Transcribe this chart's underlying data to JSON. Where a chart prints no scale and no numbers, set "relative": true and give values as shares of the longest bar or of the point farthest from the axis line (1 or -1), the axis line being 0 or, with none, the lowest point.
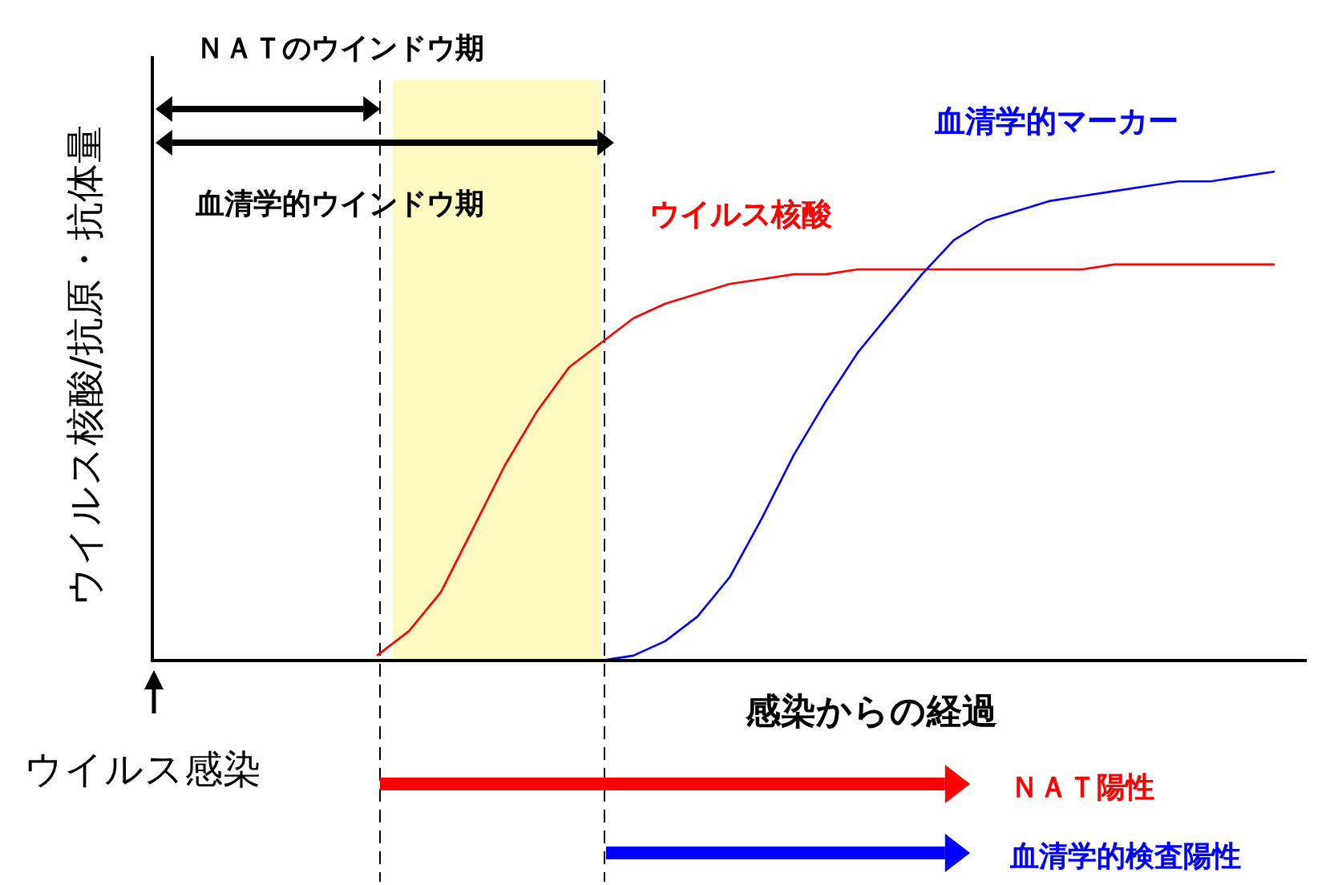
{
  "chart_data": {
    "type": "line",
    "relative": true,
    "xlabel": "感染からの経過",
    "ylabel": "ウイルス核酸/抗原・抗体量",
    "categories": [
      null,
      null,
      null,
      null,
      null,
      null,
      null,
      null,
      null,
      null,
      null,
      null,
      null,
      null,
      null,
      null,
      null,
      null,
      null,
      null,
      null,
      null,
      null,
      null,
      null,
      null,
      null,
      null,
      null,
      null,
      null,
      null,
      null,
      null,
      null,
      null
    ],
    "line_style": "solid",
    "series": [
      {
        "name": "ウイルス核酸",
        "color": "#ff0000",
        "values": [
          null,
          null,
          null,
          null,
          null,
          null,
          null,
          0.01,
          0.06,
          0.14,
          0.27,
          0.4,
          0.51,
          0.6,
          0.65,
          0.7,
          0.73,
          0.75,
          0.77,
          0.78,
          0.79,
          0.79,
          0.8,
          0.8,
          0.8,
          0.8,
          0.8,
          0.8,
          0.8,
          0.8,
          0.81,
          0.81,
          0.81,
          0.81,
          0.81,
          0.81
        ]
      },
      {
        "name": "血清学的マーカー",
        "color": "#0000ff",
        "values": [
          null,
          null,
          null,
          null,
          null,
          null,
          null,
          null,
          null,
          null,
          null,
          null,
          null,
          null,
          0,
          0.01,
          0.04,
          0.09,
          0.17,
          0.29,
          0.42,
          0.53,
          0.63,
          0.71,
          0.79,
          0.86,
          0.9,
          0.92,
          0.94,
          0.95,
          0.96,
          0.97,
          0.98,
          0.98,
          0.99,
          1
        ]
      }
    ],
    "annotations": [
      "ＮＡＴのウインドウ期",
      "血清学的ウインドウ期",
      "ウイルス感染",
      "ＮＡＴ陽性",
      "血清学的検査陽性"
    ]
  }
}
